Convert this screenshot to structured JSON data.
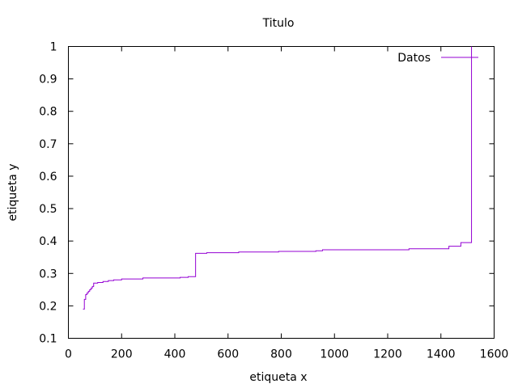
{
  "chart_data": {
    "type": "line",
    "title": "Titulo",
    "xlabel": "etiqueta x",
    "ylabel": "etiqueta y",
    "xlim": [
      0,
      1600
    ],
    "ylim": [
      0.1,
      1
    ],
    "x_ticks": [
      "0",
      "200",
      "400",
      "600",
      "800",
      "1000",
      "1200",
      "1400",
      "1600"
    ],
    "y_ticks": [
      "0.1",
      "0.2",
      "0.3",
      "0.4",
      "0.5",
      "0.6",
      "0.7",
      "0.8",
      "0.9",
      "1"
    ],
    "grid": false,
    "legend_position": "top-right",
    "series": [
      {
        "name": "Datos",
        "color": "#9400d3",
        "step": true,
        "points": [
          [
            55,
            0.19
          ],
          [
            60,
            0.22
          ],
          [
            65,
            0.235
          ],
          [
            70,
            0.24
          ],
          [
            75,
            0.245
          ],
          [
            80,
            0.25
          ],
          [
            85,
            0.255
          ],
          [
            90,
            0.26
          ],
          [
            95,
            0.27
          ],
          [
            110,
            0.272
          ],
          [
            130,
            0.275
          ],
          [
            150,
            0.278
          ],
          [
            170,
            0.28
          ],
          [
            200,
            0.283
          ],
          [
            280,
            0.286
          ],
          [
            420,
            0.288
          ],
          [
            450,
            0.29
          ],
          [
            478,
            0.362
          ],
          [
            520,
            0.364
          ],
          [
            640,
            0.366
          ],
          [
            790,
            0.368
          ],
          [
            930,
            0.37
          ],
          [
            955,
            0.373
          ],
          [
            1280,
            0.376
          ],
          [
            1430,
            0.384
          ],
          [
            1475,
            0.395
          ],
          [
            1515,
            1.0
          ]
        ]
      }
    ]
  }
}
